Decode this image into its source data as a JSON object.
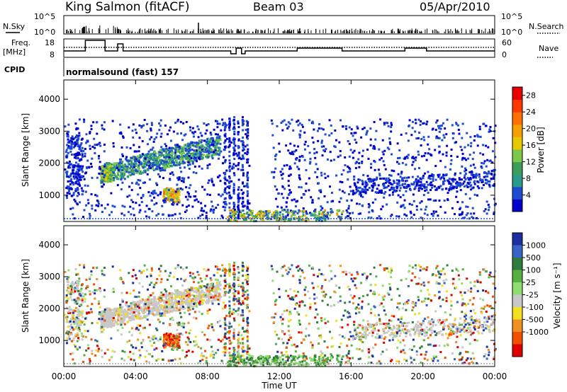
{
  "header": {
    "station": "King Salmon (fitACF)",
    "beam": "Beam 03",
    "date": "05/Apr/2010"
  },
  "top_panels": {
    "nsky_label": "N.Sky",
    "nsearch_label": "N.Search",
    "nsky_ticks": [
      "10^5",
      "10^0"
    ],
    "nsearch_ticks": [
      "10^5",
      "10^0"
    ],
    "freq_label_line1": "Freq.",
    "freq_label_line2": "[MHz]",
    "freq_ticks": [
      "18",
      "8"
    ],
    "nave_label": "Nave",
    "nave_ticks": [
      "60",
      "0"
    ],
    "cpid_label": "CPID",
    "cpid_value": "normalsound (fast) 157"
  },
  "chart_data": [
    {
      "type": "heatmap",
      "title": "",
      "xlabel": "Time UT",
      "ylabel": "Slant Range [km]",
      "x_ticks": [
        "00:00",
        "04:00",
        "08:00",
        "12:00",
        "16:00",
        "20:00",
        "00:00"
      ],
      "y_ticks": [
        1000,
        2000,
        3000,
        4000
      ],
      "ylim": [
        180,
        4600
      ],
      "colorbar": {
        "label": "Power [dB]",
        "ticks": [
          4,
          8,
          12,
          16,
          20,
          24,
          28
        ],
        "range": [
          0,
          30
        ],
        "colors": [
          "#0000cc",
          "#1e4bd2",
          "#2a9a8a",
          "#3c9c5a",
          "#7cc84a",
          "#e6c800",
          "#f5a000",
          "#ff7000",
          "#ff3800",
          "#e60000"
        ]
      }
    },
    {
      "type": "heatmap",
      "title": "",
      "xlabel": "Time UT",
      "ylabel": "Slant Range [km]",
      "x_ticks": [
        "00:00",
        "04:00",
        "08:00",
        "12:00",
        "16:00",
        "20:00",
        "00:00"
      ],
      "y_ticks": [
        1000,
        2000,
        3000,
        4000
      ],
      "ylim": [
        180,
        4600
      ],
      "colorbar": {
        "label": "Velocity [m s^-1]",
        "ticks": [
          "1000",
          "500",
          "100",
          "25",
          "-25",
          "-100",
          "-500",
          "-1000"
        ],
        "colors": [
          "#1c2ea0",
          "#3a63c8",
          "#2f7a3e",
          "#55b040",
          "#8fdd70",
          "#c8c8c8",
          "#f0e020",
          "#f09020",
          "#f05000",
          "#e00000"
        ]
      }
    }
  ]
}
